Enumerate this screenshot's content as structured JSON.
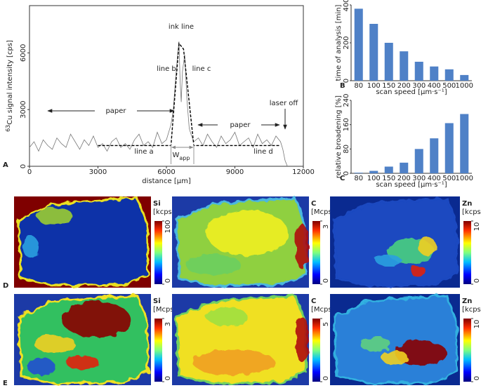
{
  "chart_data": [
    {
      "type": "line",
      "panel": "A",
      "xlabel": "distance [µm]",
      "ylabel_isotope": "63",
      "ylabel": "Cu signal intensity [cps]",
      "xlim": [
        0,
        12000
      ],
      "xticks": [
        0,
        3000,
        6000,
        9000,
        12000
      ],
      "ylim": [
        0,
        8500
      ],
      "yticks": [
        0,
        3000,
        6000
      ],
      "series": [
        {
          "color": "#777777",
          "x": [
            0,
            200,
            400,
            600,
            800,
            1000,
            1200,
            1400,
            1600,
            1800,
            2000,
            2200,
            2400,
            2600,
            2800,
            3000,
            3200,
            3400,
            3600,
            3800,
            4000,
            4200,
            4400,
            4600,
            4800,
            5000,
            5200,
            5400,
            5600,
            5800,
            6000,
            6200,
            6300,
            6400,
            6500,
            6550,
            6600,
            6650,
            6700,
            6800,
            6900,
            7000,
            7100,
            7200,
            7400,
            7600,
            7800,
            8000,
            8200,
            8400,
            8600,
            8800,
            9000,
            9200,
            9400,
            9600,
            9800,
            10000,
            10200,
            10400,
            10600,
            10800,
            11000,
            11100,
            11200,
            11300
          ],
          "values": [
            1000,
            1300,
            800,
            1400,
            1100,
            900,
            1500,
            1200,
            1000,
            1700,
            1300,
            900,
            1400,
            1100,
            1600,
            1000,
            1200,
            800,
            1300,
            1500,
            1000,
            1200,
            900,
            1400,
            1700,
            1100,
            1300,
            1000,
            1800,
            1200,
            1400,
            2200,
            3000,
            4600,
            6000,
            6600,
            4500,
            3400,
            5000,
            5900,
            3500,
            2000,
            1600,
            1300,
            1500,
            1100,
            1700,
            1300,
            1000,
            1600,
            1200,
            1400,
            1800,
            1100,
            1300,
            1500,
            1000,
            1700,
            1200,
            1400,
            1100,
            1600,
            1300,
            900,
            300,
            0
          ]
        },
        {
          "color": "#000000",
          "dashed": true,
          "x": [
            3000,
            6200,
            6550,
            6750,
            7200,
            11000
          ],
          "values": [
            1100,
            1100,
            6500,
            6200,
            1100,
            1100
          ]
        }
      ],
      "annotations": {
        "ink_line": "ink line",
        "paper_left": "paper",
        "paper_right": "paper",
        "laser_off": "laser off",
        "line_a": "line a",
        "line_b": "line b",
        "line_c": "line c",
        "line_d": "line d",
        "w": "W",
        "w_sub": "app"
      }
    },
    {
      "type": "bar",
      "panel": "B",
      "ylabel": "time of analysis [min]",
      "xlabel": "scan speed [µm·s⁻¹]",
      "categories": [
        "80",
        "100",
        "150",
        "200",
        "300",
        "400",
        "500",
        "1000"
      ],
      "values": [
        380,
        300,
        200,
        155,
        100,
        75,
        60,
        30
      ],
      "color": "#4f81c7",
      "ylim": [
        0,
        400
      ],
      "yticks": [
        0,
        200,
        400
      ]
    },
    {
      "type": "bar",
      "panel": "C",
      "ylabel": "relative broadening [%]",
      "xlabel": "scan speed [µm·s⁻¹]",
      "categories": [
        "80",
        "100",
        "150",
        "200",
        "300",
        "400",
        "500",
        "1000"
      ],
      "values": [
        2,
        8,
        22,
        35,
        80,
        115,
        165,
        195
      ],
      "color": "#4f81c7",
      "ylim": [
        0,
        240
      ],
      "yticks": [
        0,
        80,
        160,
        240
      ]
    }
  ],
  "rows": [
    {
      "panel": "D",
      "maps": [
        {
          "element": "Si",
          "unit": "[kcps]",
          "clim": [
            0,
            100
          ],
          "ticks": [
            0,
            100
          ]
        },
        {
          "element": "C",
          "unit": "[Mcps]",
          "clim": [
            0,
            3
          ],
          "ticks": [
            0,
            3
          ]
        },
        {
          "element": "Zn",
          "unit": "[kcps]",
          "clim": [
            0,
            10
          ],
          "ticks": [
            0,
            10
          ]
        }
      ]
    },
    {
      "panel": "E",
      "maps": [
        {
          "element": "Si",
          "unit": "[Mcps]",
          "clim": [
            0,
            3
          ],
          "ticks": [
            0,
            3
          ]
        },
        {
          "element": "C",
          "unit": "[Mcps]",
          "clim": [
            0,
            5
          ],
          "ticks": [
            0,
            5
          ]
        },
        {
          "element": "Zn",
          "unit": "[kcps]",
          "clim": [
            0,
            10
          ],
          "ticks": [
            0,
            10
          ]
        }
      ]
    }
  ]
}
